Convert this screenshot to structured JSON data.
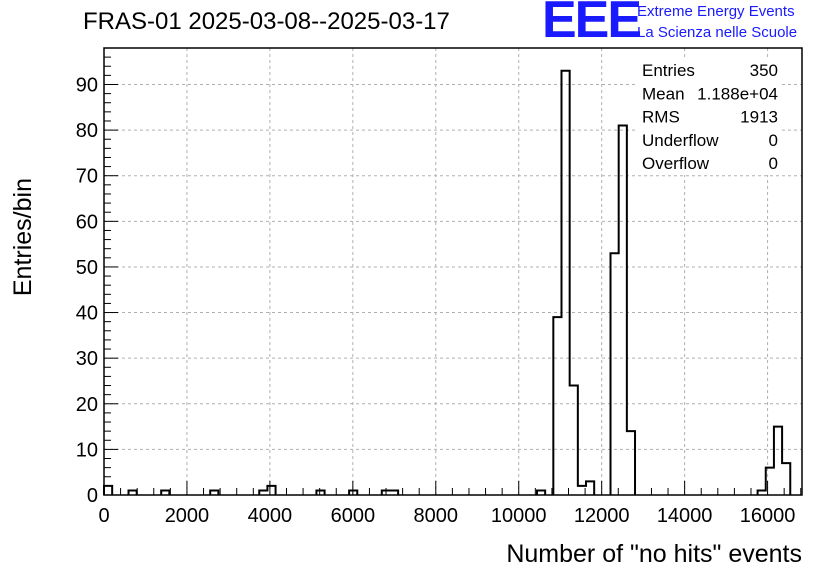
{
  "title": "FRAS-01 2025-03-08--2025-03-17",
  "logo": {
    "mark": "EEE",
    "line1": "Extreme Energy Events",
    "line2": "La Scienza nelle Scuole",
    "color": "#1a1aff"
  },
  "stats": [
    {
      "label": "Entries",
      "value": "350"
    },
    {
      "label": "Mean",
      "value": "1.188e+04"
    },
    {
      "label": "RMS",
      "value": "1913"
    },
    {
      "label": "Underflow",
      "value": "0"
    },
    {
      "label": "Overflow",
      "value": "0"
    }
  ],
  "chart_data": {
    "type": "histogram",
    "title": "FRAS-01 2025-03-08--2025-03-17",
    "xlabel": "Number of \"no hits\" events",
    "ylabel": "Entries/bin",
    "xlim": [
      0,
      16830
    ],
    "ylim": [
      0,
      98
    ],
    "bin_width": 197,
    "xticks": [
      0,
      2000,
      4000,
      6000,
      8000,
      10000,
      12000,
      14000,
      16000
    ],
    "yticks": [
      0,
      10,
      20,
      30,
      40,
      50,
      60,
      70,
      80,
      90
    ],
    "grid": true,
    "line_color": "#000000",
    "bins": [
      {
        "x": 0,
        "y": 2
      },
      {
        "x": 591,
        "y": 1
      },
      {
        "x": 1379,
        "y": 1
      },
      {
        "x": 2561,
        "y": 1
      },
      {
        "x": 3743,
        "y": 1
      },
      {
        "x": 3940,
        "y": 2
      },
      {
        "x": 5122,
        "y": 1
      },
      {
        "x": 5910,
        "y": 1
      },
      {
        "x": 6698,
        "y": 1
      },
      {
        "x": 6895,
        "y": 1
      },
      {
        "x": 10440,
        "y": 1
      },
      {
        "x": 10834,
        "y": 39
      },
      {
        "x": 11031,
        "y": 93
      },
      {
        "x": 11228,
        "y": 24
      },
      {
        "x": 11425,
        "y": 2
      },
      {
        "x": 11622,
        "y": 3
      },
      {
        "x": 12213,
        "y": 53
      },
      {
        "x": 12410,
        "y": 81
      },
      {
        "x": 12607,
        "y": 14
      },
      {
        "x": 15759,
        "y": 1
      },
      {
        "x": 15956,
        "y": 6
      },
      {
        "x": 16153,
        "y": 15
      },
      {
        "x": 16350,
        "y": 7
      }
    ]
  }
}
